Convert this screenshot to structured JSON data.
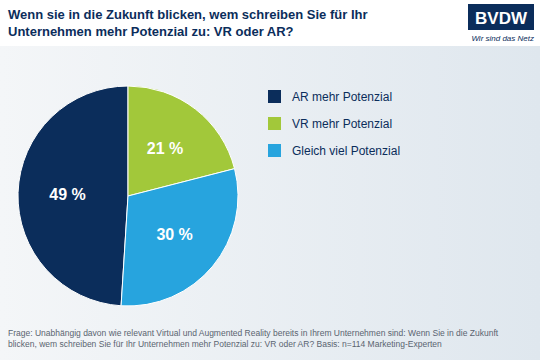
{
  "chart_data": {
    "type": "pie",
    "title": "Wenn sie in die Zukunft blicken, wem schreiben Sie für Ihr Unternehmen mehr Potenzial zu: VR oder AR?",
    "categories": [
      "AR mehr Potenzial",
      "VR mehr Potenzial",
      "Gleich viel Potenzial"
    ],
    "values": [
      49,
      21,
      30
    ],
    "value_labels": [
      "49 %",
      "21 %",
      "30 %"
    ],
    "colors": [
      "#0b2d5b",
      "#a2c83a",
      "#27a4de"
    ],
    "data_labels": true,
    "legend": "right",
    "note": "Frage: Unabhängig davon wie relevant Virtual und Augmented Reality bereits in Ihrem Unternehmen sind: Wenn Sie in die Zukunft blicken, wem schreiben Sie für Ihr Unternehmen mehr Potenzial zu: VR oder AR? Basis: n=114 Marketing-Experten",
    "logo": {
      "text": "BVDW",
      "tagline": "Wir sind das Netz"
    }
  }
}
